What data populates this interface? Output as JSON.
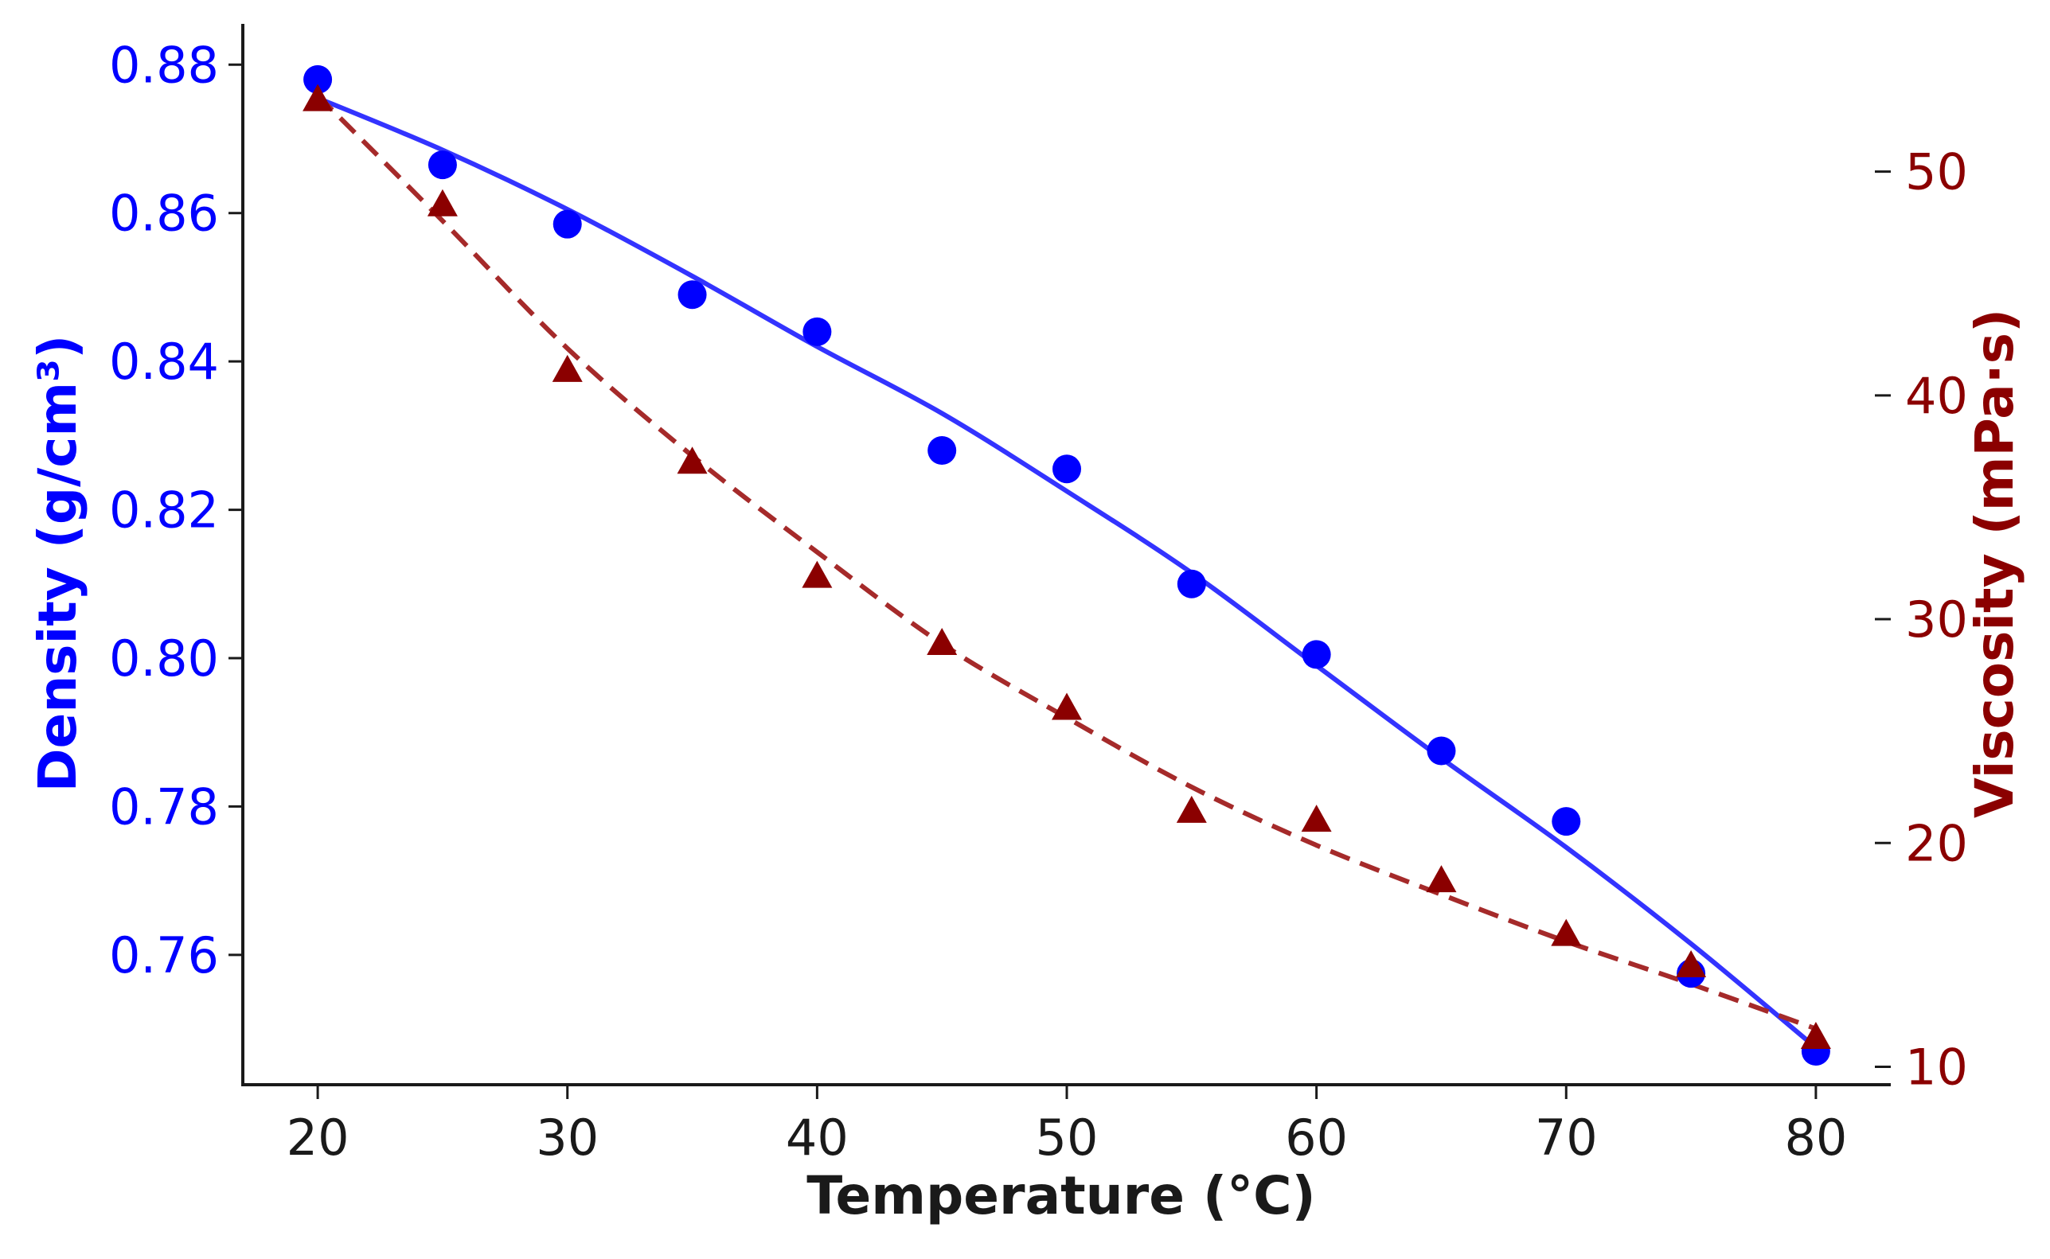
{
  "chart_data": {
    "type": "scatter",
    "xlabel": "Temperature (°C)",
    "ylabel_left": "Density (g/cm³)",
    "ylabel_right": "Viscosity (mPa·s)",
    "xlim": [
      17,
      83
    ],
    "ylim_left": [
      0.7425,
      0.8855
    ],
    "ylim_right": [
      9.2,
      56.6
    ],
    "x_ticks": [
      20,
      30,
      40,
      50,
      60,
      70,
      80
    ],
    "y_left_ticks": [
      0.76,
      0.78,
      0.8,
      0.82,
      0.84,
      0.86,
      0.88
    ],
    "y_left_tick_labels": [
      "0.76",
      "0.78",
      "0.80",
      "0.82",
      "0.84",
      "0.86",
      "0.88"
    ],
    "y_right_ticks": [
      10,
      20,
      30,
      40,
      50
    ],
    "grid": false,
    "colors": {
      "density": "#0000ff",
      "density_fit": "#3333ff",
      "viscosity": "#8b0000",
      "viscosity_fit": "#a52a2a",
      "axis": "#1a1a1a"
    },
    "series": [
      {
        "name": "Density",
        "axis": "left",
        "marker": "circle",
        "x": [
          20,
          25,
          30,
          35,
          40,
          45,
          50,
          55,
          60,
          65,
          70,
          75,
          80
        ],
        "values": [
          0.878,
          0.8665,
          0.8585,
          0.849,
          0.844,
          0.828,
          0.8255,
          0.81,
          0.8005,
          0.7875,
          0.778,
          0.7575,
          0.747
        ]
      },
      {
        "name": "Density fit",
        "axis": "left",
        "style": "solid",
        "x": [
          20,
          25,
          30,
          35,
          40,
          45,
          50,
          55,
          60,
          65,
          70,
          75,
          80
        ],
        "values": [
          0.8755,
          0.8685,
          0.8605,
          0.8515,
          0.842,
          0.833,
          0.8225,
          0.8115,
          0.799,
          0.7865,
          0.7745,
          0.7615,
          0.7475
        ]
      },
      {
        "name": "Viscosity",
        "axis": "right",
        "marker": "triangle",
        "x": [
          20,
          25,
          30,
          35,
          40,
          45,
          50,
          55,
          60,
          65,
          70,
          75,
          80
        ],
        "values": [
          53.2,
          48.5,
          41.1,
          37.0,
          31.9,
          28.9,
          26.0,
          21.4,
          21.0,
          18.3,
          15.9,
          14.5,
          11.3
        ]
      },
      {
        "name": "Viscosity fit",
        "axis": "right",
        "style": "dashed",
        "x": [
          20,
          25,
          30,
          35,
          40,
          45,
          50,
          55,
          60,
          65,
          70,
          75,
          80
        ],
        "values": [
          53.4,
          47.8,
          42.1,
          37.3,
          33.0,
          28.9,
          25.6,
          22.5,
          19.9,
          17.7,
          15.6,
          13.7,
          11.7
        ]
      }
    ]
  }
}
